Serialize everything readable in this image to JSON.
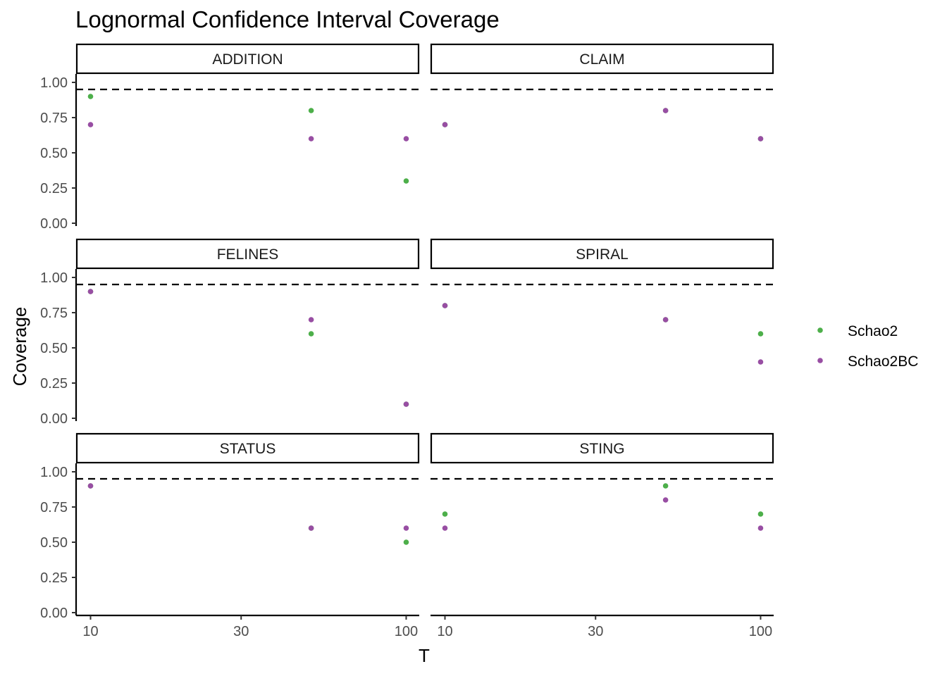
{
  "chart_data": {
    "type": "scatter",
    "title": "Lognormal Confidence Interval Coverage",
    "xlabel": "T",
    "ylabel": "Coverage",
    "x_scale": "log10",
    "x_ticks": [
      10,
      30,
      100
    ],
    "x_tick_labels": [
      "10",
      "30",
      "100"
    ],
    "xlim": [
      9,
      110
    ],
    "ylim": [
      -0.02,
      1.06
    ],
    "y_ticks": [
      0,
      0.25,
      0.5,
      0.75,
      1.0
    ],
    "y_tick_labels": [
      "0.00",
      "0.25",
      "0.50",
      "0.75",
      "1.00"
    ],
    "reference_line": {
      "y": 0.95,
      "style": "dashed"
    },
    "grid": false,
    "legend_position": "right",
    "series": [
      {
        "name": "Schao2",
        "color": "#4DAF4A"
      },
      {
        "name": "Schao2BC",
        "color": "#984EA3"
      }
    ],
    "panels": [
      {
        "label": "ADDITION",
        "points": {
          "Schao2": [
            {
              "x": 10,
              "y": 0.9
            },
            {
              "x": 50,
              "y": 0.8
            },
            {
              "x": 100,
              "y": 0.3
            }
          ],
          "Schao2BC": [
            {
              "x": 10,
              "y": 0.7
            },
            {
              "x": 50,
              "y": 0.6
            },
            {
              "x": 100,
              "y": 0.6
            }
          ]
        }
      },
      {
        "label": "CLAIM",
        "points": {
          "Schao2": [
            {
              "x": 10,
              "y": 0.7
            },
            {
              "x": 50,
              "y": 0.8
            },
            {
              "x": 100,
              "y": 0.6
            }
          ],
          "Schao2BC": [
            {
              "x": 10,
              "y": 0.7
            },
            {
              "x": 50,
              "y": 0.8
            },
            {
              "x": 100,
              "y": 0.6
            }
          ]
        }
      },
      {
        "label": "FELINES",
        "points": {
          "Schao2": [
            {
              "x": 10,
              "y": 0.9
            },
            {
              "x": 50,
              "y": 0.6
            },
            {
              "x": 100,
              "y": 0.1
            }
          ],
          "Schao2BC": [
            {
              "x": 10,
              "y": 0.9
            },
            {
              "x": 50,
              "y": 0.7
            },
            {
              "x": 100,
              "y": 0.1
            }
          ]
        }
      },
      {
        "label": "SPIRAL",
        "points": {
          "Schao2": [
            {
              "x": 10,
              "y": 0.8
            },
            {
              "x": 50,
              "y": 0.7
            },
            {
              "x": 100,
              "y": 0.6
            }
          ],
          "Schao2BC": [
            {
              "x": 10,
              "y": 0.8
            },
            {
              "x": 50,
              "y": 0.7
            },
            {
              "x": 100,
              "y": 0.4
            }
          ]
        }
      },
      {
        "label": "STATUS",
        "points": {
          "Schao2": [
            {
              "x": 10,
              "y": 0.9
            },
            {
              "x": 50,
              "y": 0.6
            },
            {
              "x": 100,
              "y": 0.5
            }
          ],
          "Schao2BC": [
            {
              "x": 10,
              "y": 0.9
            },
            {
              "x": 50,
              "y": 0.6
            },
            {
              "x": 100,
              "y": 0.6
            }
          ]
        }
      },
      {
        "label": "STING",
        "points": {
          "Schao2": [
            {
              "x": 10,
              "y": 0.7
            },
            {
              "x": 50,
              "y": 0.9
            },
            {
              "x": 100,
              "y": 0.7
            }
          ],
          "Schao2BC": [
            {
              "x": 10,
              "y": 0.6
            },
            {
              "x": 50,
              "y": 0.8
            },
            {
              "x": 100,
              "y": 0.6
            }
          ]
        }
      }
    ]
  }
}
